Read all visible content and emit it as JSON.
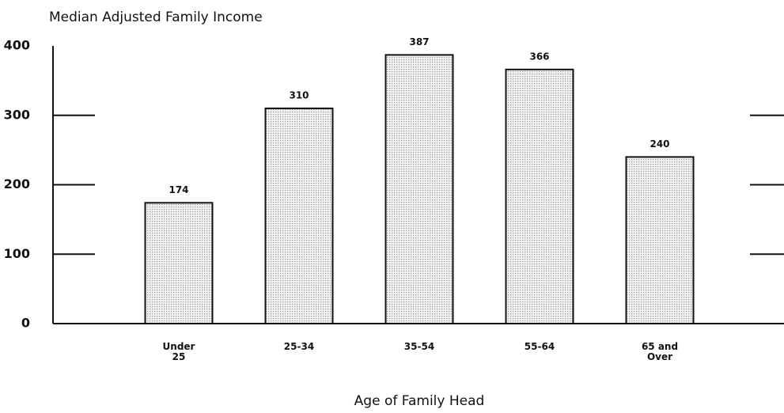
{
  "chart_data": {
    "type": "bar",
    "title": "Median Adjusted Family Income",
    "x_label": "Age of Family Head",
    "categories": [
      "Under 25",
      "25-34",
      "35-54",
      "55-64",
      "65 and Over"
    ],
    "values": [
      174,
      310,
      387,
      366,
      240
    ],
    "color": "#9a9a9a",
    "ylim": [
      0,
      400
    ],
    "yticks": [
      0,
      100,
      200,
      300,
      400
    ],
    "grid": false
  }
}
